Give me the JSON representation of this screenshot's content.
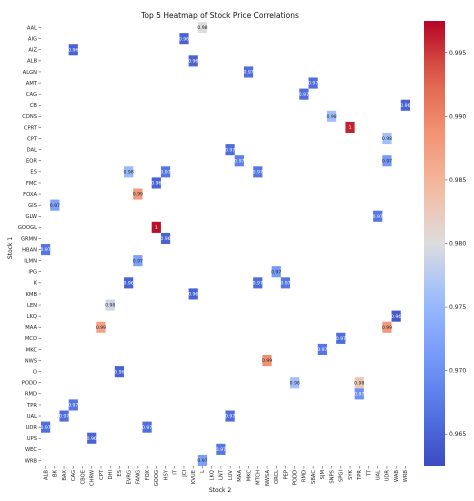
{
  "chart_data": {
    "type": "heatmap",
    "title": "Top 5 Heatmap of Stock Price Correlations",
    "xlabel": "Stock 2",
    "ylabel": "Stock 1",
    "rows": [
      "AAL",
      "AIG",
      "AIZ",
      "ALB",
      "ALGN",
      "AMT",
      "CAG",
      "CB",
      "CDNS",
      "CPRT",
      "CPT",
      "DAL",
      "EQR",
      "ES",
      "FMC",
      "FOXA",
      "GIS",
      "GLW",
      "GOOGL",
      "GRMN",
      "HBAN",
      "ILMN",
      "IPG",
      "K",
      "KMB",
      "LEN",
      "LKQ",
      "MAA",
      "MCO",
      "MKC",
      "NWS",
      "O",
      "PODD",
      "RMD",
      "TPR",
      "UAL",
      "UDR",
      "UPS",
      "WEC",
      "WRB"
    ],
    "columns": [
      "ALB",
      "BK",
      "BAX",
      "CAG",
      "CBOE",
      "CHRW",
      "CPT",
      "DHI",
      "ES",
      "EVRG",
      "FANG",
      "FOX",
      "GOOG",
      "HSY",
      "IT",
      "JCI",
      "KVUE",
      "L",
      "LKQ",
      "LNT",
      "LUV",
      "MAA",
      "MKC",
      "MTCH",
      "NWSA",
      "ORCL",
      "PEP",
      "PODD",
      "RMD",
      "SBAC",
      "SJM",
      "SNPS",
      "SPGI",
      "SYK",
      "TPR",
      "TT",
      "UAL",
      "UDR",
      "WAB",
      "WRB"
    ],
    "cells": [
      {
        "row": "AAL",
        "col": "L",
        "value": 0.98,
        "label": "0.98"
      },
      {
        "row": "AIG",
        "col": "JCI",
        "value": 0.965,
        "label": "0.96"
      },
      {
        "row": "AIZ",
        "col": "CAG",
        "value": 0.965,
        "label": "0.96"
      },
      {
        "row": "ALB",
        "col": "KVUE",
        "value": 0.965,
        "label": "0.96"
      },
      {
        "row": "ALGN",
        "col": "MKC",
        "value": 0.966,
        "label": "0.97"
      },
      {
        "row": "AMT",
        "col": "SBAC",
        "value": 0.966,
        "label": "0.97"
      },
      {
        "row": "CAG",
        "col": "RMD",
        "value": 0.966,
        "label": "0.97"
      },
      {
        "row": "CB",
        "col": "WRB",
        "value": 0.965,
        "label": "0.96"
      },
      {
        "row": "CDNS",
        "col": "SNPS",
        "value": 0.976,
        "label": "0.98"
      },
      {
        "row": "CPRT",
        "col": "SYK",
        "value": 0.996,
        "label": "1"
      },
      {
        "row": "CPT",
        "col": "UDR",
        "value": 0.976,
        "label": "0.98"
      },
      {
        "row": "DAL",
        "col": "LUV",
        "value": 0.966,
        "label": "0.97"
      },
      {
        "row": "EQR",
        "col": "MAA",
        "value": 0.968,
        "label": "0.97"
      },
      {
        "row": "EQR",
        "col": "UDR",
        "value": 0.971,
        "label": "0.97"
      },
      {
        "row": "ES",
        "col": "EVRG",
        "value": 0.975,
        "label": "0.98"
      },
      {
        "row": "ES",
        "col": "HSY",
        "value": 0.967,
        "label": "0.97"
      },
      {
        "row": "ES",
        "col": "MTCH",
        "value": 0.967,
        "label": "0.97"
      },
      {
        "row": "FMC",
        "col": "GOOG",
        "value": 0.965,
        "label": "0.96"
      },
      {
        "row": "FOXA",
        "col": "FANG",
        "value": 0.988,
        "label": "0.99"
      },
      {
        "row": "GIS",
        "col": "BK",
        "value": 0.972,
        "label": "0.97"
      },
      {
        "row": "GLW",
        "col": "UAL",
        "value": 0.967,
        "label": "0.97"
      },
      {
        "row": "GOOGL",
        "col": "GOOG",
        "value": 0.997,
        "label": "1"
      },
      {
        "row": "GRMN",
        "col": "HSY",
        "value": 0.965,
        "label": "0.96"
      },
      {
        "row": "HBAN",
        "col": "ALB",
        "value": 0.967,
        "label": "0.97"
      },
      {
        "row": "ILMN",
        "col": "FANG",
        "value": 0.972,
        "label": "0.97"
      },
      {
        "row": "IPG",
        "col": "ORCL",
        "value": 0.971,
        "label": "0.97"
      },
      {
        "row": "K",
        "col": "EVRG",
        "value": 0.965,
        "label": "0.96"
      },
      {
        "row": "K",
        "col": "MTCH",
        "value": 0.966,
        "label": "0.97"
      },
      {
        "row": "K",
        "col": "PEP",
        "value": 0.967,
        "label": "0.97"
      },
      {
        "row": "KMB",
        "col": "KVUE",
        "value": 0.965,
        "label": "0.96"
      },
      {
        "row": "LEN",
        "col": "DHI",
        "value": 0.979,
        "label": "0.98"
      },
      {
        "row": "LKQ",
        "col": "WAB",
        "value": 0.964,
        "label": "0.96"
      },
      {
        "row": "MAA",
        "col": "CPT",
        "value": 0.987,
        "label": "0.99"
      },
      {
        "row": "MAA",
        "col": "UDR",
        "value": 0.988,
        "label": "0.99"
      },
      {
        "row": "MCO",
        "col": "SPGI",
        "value": 0.966,
        "label": "0.97"
      },
      {
        "row": "MKC",
        "col": "SJM",
        "value": 0.967,
        "label": "0.97"
      },
      {
        "row": "NWS",
        "col": "NWSA",
        "value": 0.989,
        "label": "0.99"
      },
      {
        "row": "O",
        "col": "ES",
        "value": 0.965,
        "label": "0.96"
      },
      {
        "row": "PODD",
        "col": "PODD",
        "value": 0.976,
        "label": "0.98"
      },
      {
        "row": "PODD",
        "col": "TPR",
        "value": 0.983,
        "label": "0.98"
      },
      {
        "row": "RMD",
        "col": "TPR",
        "value": 0.97,
        "label": "0.97"
      },
      {
        "row": "TPR",
        "col": "CAG",
        "value": 0.967,
        "label": "0.97"
      },
      {
        "row": "UAL",
        "col": "BAX",
        "value": 0.966,
        "label": "0.97"
      },
      {
        "row": "UAL",
        "col": "LUV",
        "value": 0.966,
        "label": "0.97"
      },
      {
        "row": "UDR",
        "col": "ALB",
        "value": 0.966,
        "label": "0.97"
      },
      {
        "row": "UDR",
        "col": "FOX",
        "value": 0.966,
        "label": "0.97"
      },
      {
        "row": "UPS",
        "col": "CHRW",
        "value": 0.965,
        "label": "0.96"
      },
      {
        "row": "WEC",
        "col": "LNT",
        "value": 0.967,
        "label": "0.97"
      },
      {
        "row": "WRB",
        "col": "L",
        "value": 0.972,
        "label": "0.97"
      }
    ],
    "colorbar": {
      "colormap": "coolwarm",
      "vmin": 0.9625,
      "vmax": 0.9975,
      "ticks": [
        0.965,
        0.97,
        0.975,
        0.98,
        0.985,
        0.99,
        0.995
      ]
    },
    "grid": false,
    "legend": "colorbar-right"
  }
}
